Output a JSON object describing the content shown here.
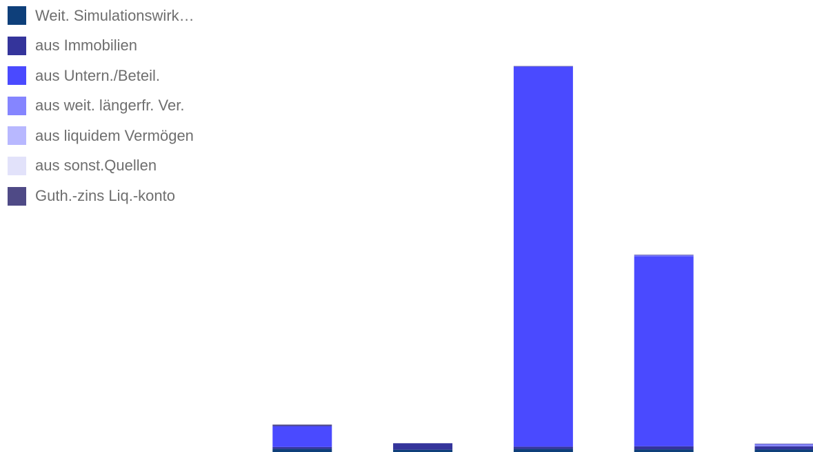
{
  "chart_data": {
    "type": "bar",
    "stacked": true,
    "title": "",
    "xlabel": "",
    "ylabel": "",
    "categories": [
      "",
      "",
      "",
      "",
      "",
      ""
    ],
    "ylim": [
      0,
      100
    ],
    "legend_position": "top-left",
    "series": [
      {
        "name": "Weit. Simulationswirk…",
        "color": "#0e3f7a",
        "values": [
          0,
          0.8,
          0.6,
          0.8,
          0.7,
          0.7
        ]
      },
      {
        "name": "aus Immobilien",
        "color": "#34349b",
        "values": [
          0,
          0.5,
          1.7,
          0.6,
          0.8,
          0.8
        ]
      },
      {
        "name": "aus Untern./Beteil.",
        "color": "#4a4aff",
        "values": [
          0,
          5.5,
          0,
          100,
          50,
          0
        ]
      },
      {
        "name": "aus weit. längerfr. Ver.",
        "color": "#8585ff",
        "values": [
          0,
          0,
          0,
          0,
          0.3,
          0.6
        ]
      },
      {
        "name": "aus liquidem Vermögen",
        "color": "#b8b8ff",
        "values": [
          0,
          0,
          0,
          0,
          0,
          0
        ]
      },
      {
        "name": "aus sonst.Quellen",
        "color": "#e2e2fa",
        "values": [
          0,
          0,
          0,
          0,
          0,
          0
        ]
      },
      {
        "name": "Guth.-zins Liq.-konto",
        "color": "#4f4a86",
        "values": [
          0,
          0.4,
          0,
          0.1,
          0.1,
          0.1
        ]
      }
    ]
  }
}
